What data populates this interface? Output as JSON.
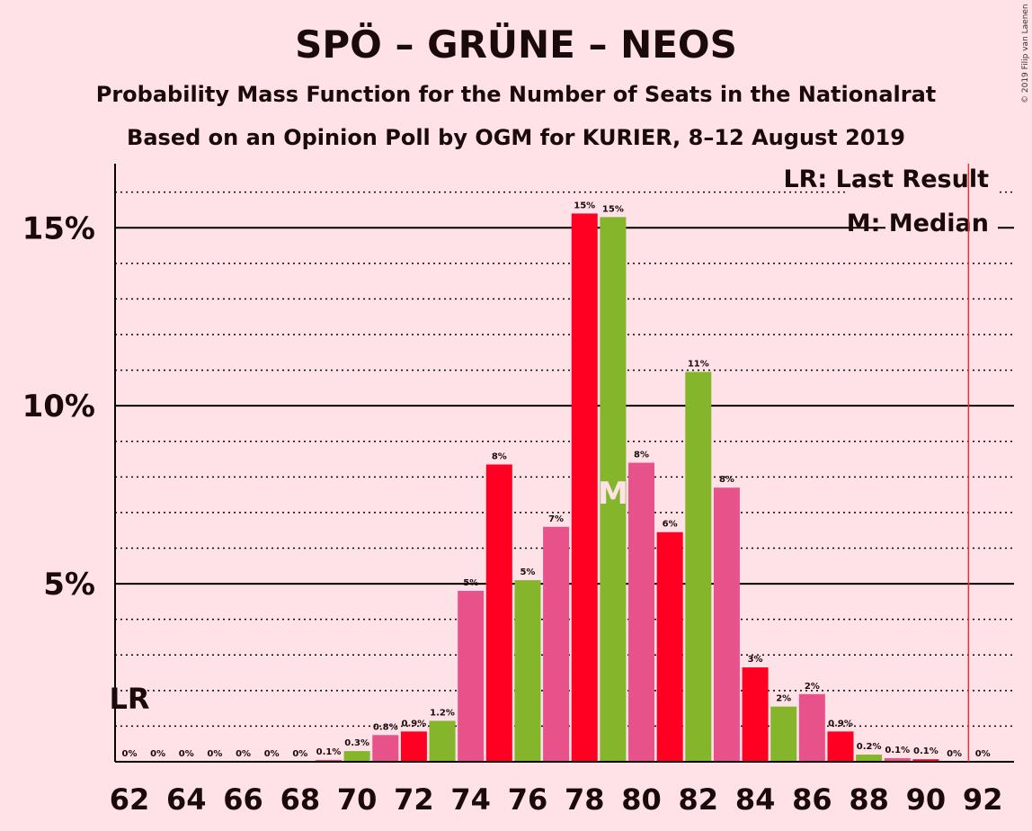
{
  "title": "SPÖ – GRÜNE – NEOS",
  "subtitle1": "Probability Mass Function for the Number of Seats in the Nationalrat",
  "subtitle2": "Based on an Opinion Poll by OGM for KURIER, 8–12 August 2019",
  "copyright": "© 2019 Filip van Laenen",
  "legend": {
    "lr": "LR: Last Result",
    "median": "M: Median"
  },
  "markers": {
    "lr_label": "LR",
    "median_label": "M"
  },
  "colors": {
    "background": "#ffe2e7",
    "red": "#ff0022",
    "green": "#84b52a",
    "pink": "#e8528a",
    "lr_line": "#e8303a"
  },
  "chart_data": {
    "type": "bar",
    "x": [
      62,
      63,
      64,
      65,
      66,
      67,
      68,
      69,
      70,
      71,
      72,
      73,
      74,
      75,
      76,
      77,
      78,
      79,
      80,
      81,
      82,
      83,
      84,
      85,
      86,
      87,
      88,
      89,
      90,
      91,
      92
    ],
    "values": [
      0,
      0,
      0,
      0,
      0,
      0,
      0,
      0.05,
      0.3,
      0.75,
      0.85,
      1.15,
      4.8,
      8.35,
      5.1,
      6.6,
      15.4,
      15.3,
      8.4,
      6.45,
      10.95,
      7.7,
      2.65,
      1.55,
      1.9,
      0.85,
      0.2,
      0.1,
      0.07,
      0,
      0
    ],
    "data_labels": [
      "0%",
      "0%",
      "0%",
      "0%",
      "0%",
      "0%",
      "0%",
      "0.1%",
      "0.3%",
      "0.8%",
      "0.9%",
      "1.2%",
      "5%",
      "8%",
      "5%",
      "7%",
      "15%",
      "15%",
      "8%",
      "6%",
      "11%",
      "8%",
      "3%",
      "2%",
      "2%",
      "0.9%",
      "0.2%",
      "0.1%",
      "0.1%",
      "0%",
      "0%"
    ],
    "bar_colors": [
      "green",
      "pink",
      "red",
      "green",
      "pink",
      "red",
      "green",
      "pink",
      "green",
      "pink",
      "red",
      "green",
      "pink",
      "red",
      "green",
      "pink",
      "red",
      "green",
      "pink",
      "red",
      "green",
      "pink",
      "red",
      "green",
      "pink",
      "red",
      "green",
      "pink",
      "red",
      "green",
      "pink"
    ],
    "x_tick_labels": [
      "62",
      "64",
      "66",
      "68",
      "70",
      "72",
      "74",
      "76",
      "78",
      "80",
      "82",
      "84",
      "86",
      "88",
      "90",
      "92"
    ],
    "y_ticks": [
      5,
      10,
      15
    ],
    "y_tick_labels": [
      "5%",
      "10%",
      "15%"
    ],
    "ylim": [
      0,
      16.8
    ],
    "last_result_seats": 91.5,
    "lr_marker_seats": 62,
    "median_seats": 79,
    "grid": "dotted minor gridlines every 1%, solid at 5%, 10%, 15%"
  }
}
